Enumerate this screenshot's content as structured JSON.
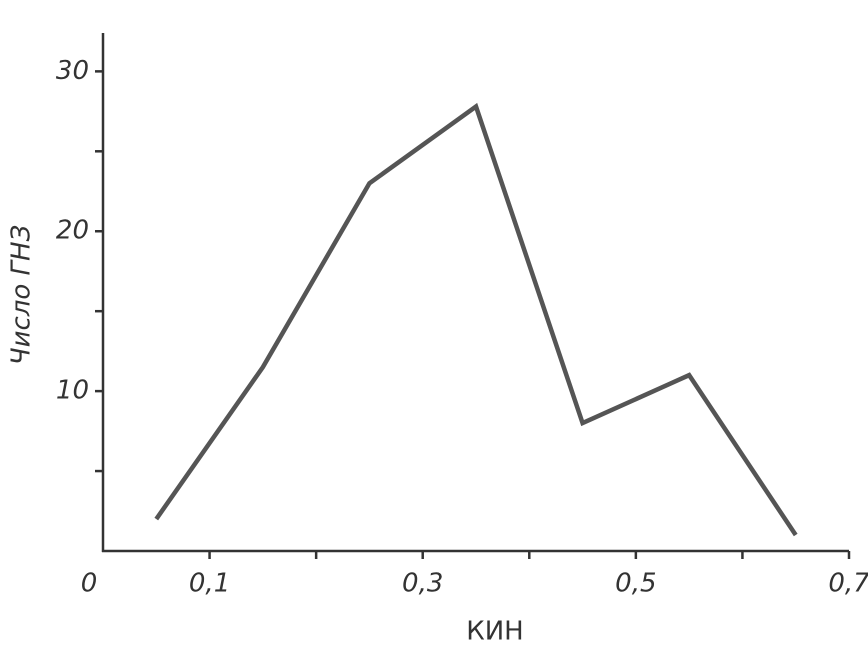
{
  "chart_data": {
    "type": "line",
    "x_label": "КИН",
    "y_label": "Число ГНЗ",
    "x": [
      0.05,
      0.15,
      0.25,
      0.35,
      0.45,
      0.55,
      0.65
    ],
    "series": [
      {
        "color": "#555555",
        "values": [
          2,
          11.5,
          23,
          27.8,
          8,
          11,
          1
        ]
      }
    ],
    "xlim": [
      0,
      0.7
    ],
    "ylim": [
      0,
      32.4
    ],
    "xticks": [
      0,
      {
        "value": 0.1,
        "label": "0,1"
      },
      {
        "value": 0.3,
        "label": "0,3"
      },
      {
        "value": 0.5,
        "label": "0,5"
      },
      {
        "value": 0.7,
        "label": "0,7"
      }
    ],
    "xminor_ticks": [
      0.2,
      0.4,
      0.6
    ],
    "yticks": [
      10,
      20,
      30
    ],
    "yminor_ticks": [
      5,
      15,
      25
    ],
    "grid": false
  }
}
